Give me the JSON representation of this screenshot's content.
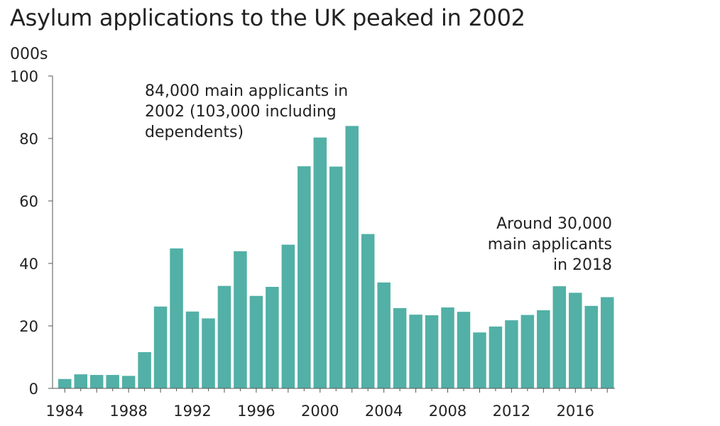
{
  "chart_data": {
    "type": "bar",
    "title": "Asylum applications to the UK peaked in 2002",
    "unit_label": "000s",
    "xlabel": "",
    "ylabel": "",
    "ylim": [
      0,
      100
    ],
    "yticks": [
      0,
      20,
      40,
      60,
      80,
      100
    ],
    "xtick_labels": [
      "1984",
      "1988",
      "1992",
      "1996",
      "2000",
      "2004",
      "2008",
      "2012",
      "2016"
    ],
    "categories": [
      1984,
      1985,
      1986,
      1987,
      1988,
      1989,
      1990,
      1991,
      1992,
      1993,
      1994,
      1995,
      1996,
      1997,
      1998,
      1999,
      2000,
      2001,
      2002,
      2003,
      2004,
      2005,
      2006,
      2007,
      2008,
      2009,
      2010,
      2011,
      2012,
      2013,
      2014,
      2015,
      2016,
      2017,
      2018
    ],
    "values": [
      3,
      4.5,
      4.3,
      4.3,
      4,
      11.6,
      26.2,
      44.8,
      24.6,
      22.4,
      32.8,
      43.9,
      29.6,
      32.5,
      46,
      71.1,
      80.3,
      71,
      84,
      49.4,
      33.9,
      25.7,
      23.6,
      23.4,
      25.9,
      24.5,
      17.9,
      19.8,
      21.8,
      23.5,
      25,
      32.7,
      30.6,
      26.4,
      29.2
    ],
    "grid": false,
    "bar_color": "#52b0a6",
    "annotations": [
      {
        "lines": [
          "84,000 main applicants in",
          "2002 (103,000 including",
          "dependents)"
        ],
        "align": "left"
      },
      {
        "lines": [
          "Around 30,000",
          "main applicants",
          "in 2018"
        ],
        "align": "right"
      }
    ]
  }
}
